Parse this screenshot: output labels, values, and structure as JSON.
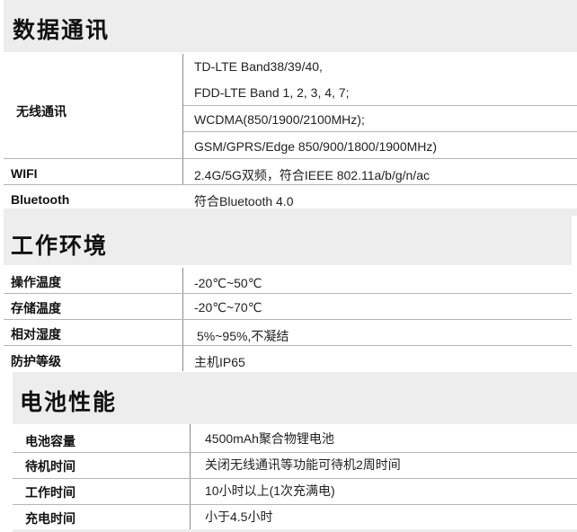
{
  "sections": [
    {
      "title": "数据通讯",
      "rows": [
        {
          "label": "无线通讯",
          "values": [
            "TD-LTE Band38/39/40,",
            "FDD-LTE Band 1, 2, 3, 4, 7;",
            "WCDMA(850/1900/2100MHz);",
            "GSM/GPRS/Edge 850/900/1800/1900MHz)"
          ]
        },
        {
          "label": "WIFI",
          "value": "2.4G/5G双频，符合IEEE 802.11a/b/g/n/ac"
        },
        {
          "label": "Bluetooth",
          "value": "符合Bluetooth 4.0"
        }
      ]
    },
    {
      "title": "工作环境",
      "rows": [
        {
          "label": "操作温度",
          "value": "-20℃~50℃"
        },
        {
          "label": "存储温度",
          "value": "-20℃~70℃"
        },
        {
          "label": "相对湿度",
          "value": "5%~95%,不凝结"
        },
        {
          "label": "防护等级",
          "value": "主机IP65"
        }
      ]
    },
    {
      "title": "电池性能",
      "rows": [
        {
          "label": "电池容量",
          "value": "4500mAh聚合物锂电池"
        },
        {
          "label": "待机时间",
          "value": "关闭无线通讯等功能可待机2周时间"
        },
        {
          "label": "工作时间",
          "value": "10小时以上(1次充满电)"
        },
        {
          "label": "充电时间",
          "value": "小于4.5小时"
        }
      ]
    }
  ]
}
